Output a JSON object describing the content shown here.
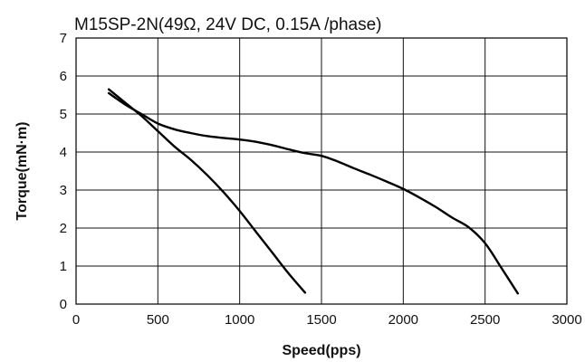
{
  "chart_data": {
    "type": "line",
    "title": "M15SP-2N(49Ω, 24V DC, 0.15A /phase)",
    "xlabel": "Speed(pps)",
    "ylabel": "Torque(mN·m)",
    "xlim": [
      0,
      3000
    ],
    "ylim": [
      0,
      7
    ],
    "x_ticks": [
      "0",
      "500",
      "1000",
      "1500",
      "2000",
      "2500",
      "3000"
    ],
    "y_ticks": [
      "0",
      "1",
      "2",
      "3",
      "4",
      "5",
      "6",
      "7"
    ],
    "grid": true,
    "legend": "none",
    "series": [
      {
        "x": [
          200,
          300,
          400,
          500,
          600,
          700,
          800,
          900,
          1000,
          1100,
          1200,
          1300,
          1400
        ],
        "y": [
          5.65,
          5.3,
          4.95,
          4.55,
          4.15,
          3.8,
          3.4,
          2.95,
          2.45,
          1.9,
          1.35,
          0.8,
          0.3
        ]
      },
      {
        "x": [
          200,
          300,
          400,
          500,
          600,
          700,
          800,
          900,
          1000,
          1100,
          1200,
          1300,
          1400,
          1500,
          1600,
          1700,
          1800,
          1900,
          2000,
          2100,
          2200,
          2300,
          2400,
          2500,
          2600,
          2700
        ],
        "y": [
          5.55,
          5.25,
          5.0,
          4.75,
          4.6,
          4.5,
          4.42,
          4.37,
          4.33,
          4.27,
          4.18,
          4.07,
          3.97,
          3.9,
          3.75,
          3.57,
          3.4,
          3.22,
          3.03,
          2.8,
          2.55,
          2.27,
          2.02,
          1.6,
          0.95,
          0.28
        ]
      }
    ]
  }
}
